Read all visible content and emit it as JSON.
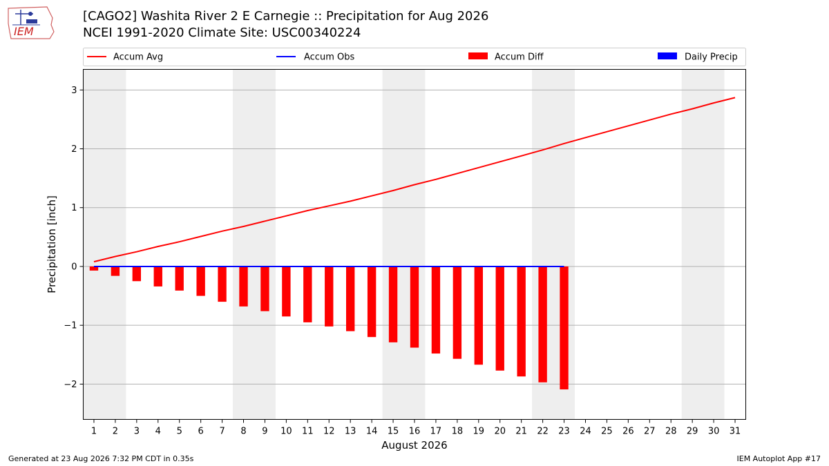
{
  "header": {
    "title_line1": "[CAGO2] Washita River 2 E Carnegie :: Precipitation for Aug 2026",
    "title_line2": "NCEI 1991-2020 Climate Site: USC00340224"
  },
  "logo": {
    "text": "IEM"
  },
  "footer": {
    "left": "Generated at 23 Aug 2026 7:32 PM CDT in 0.35s",
    "right": "IEM Autoplot App #17"
  },
  "chart_data": {
    "type": "bar",
    "xlabel": "August 2026",
    "ylabel": "Precipitation [inch]",
    "xlim": [
      0.5,
      31.5
    ],
    "ylim": [
      -2.6,
      3.35
    ],
    "yticks": [
      -2,
      -1,
      0,
      1,
      2,
      3
    ],
    "ytick_labels": [
      "−2",
      "−1",
      "0",
      "1",
      "2",
      "3"
    ],
    "xticks": [
      1,
      2,
      3,
      4,
      5,
      6,
      7,
      8,
      9,
      10,
      11,
      12,
      13,
      14,
      15,
      16,
      17,
      18,
      19,
      20,
      21,
      22,
      23,
      24,
      25,
      26,
      27,
      28,
      29,
      30,
      31
    ],
    "grid": true,
    "legend_position": "top",
    "weekend_shading": [
      [
        0.5,
        2.5
      ],
      [
        7.5,
        9.5
      ],
      [
        14.5,
        16.5
      ],
      [
        21.5,
        23.5
      ],
      [
        28.5,
        30.5
      ]
    ],
    "colors": {
      "accum_avg": "#ff0000",
      "accum_obs": "#0000ff",
      "accum_diff": "#ff0000",
      "daily_precip": "#0000ff",
      "shade": "#eeeeee",
      "grid": "#b0b0b0"
    },
    "legend": [
      "Accum Avg",
      "Accum Obs",
      "Accum Diff",
      "Daily Precip"
    ],
    "series": [
      {
        "name": "Accum Avg",
        "kind": "line",
        "x": [
          1,
          2,
          3,
          4,
          5,
          6,
          7,
          8,
          9,
          10,
          11,
          12,
          13,
          14,
          15,
          16,
          17,
          18,
          19,
          20,
          21,
          22,
          23,
          24,
          25,
          26,
          27,
          28,
          29,
          30,
          31
        ],
        "values": [
          0.08,
          0.17,
          0.25,
          0.34,
          0.42,
          0.51,
          0.6,
          0.68,
          0.77,
          0.86,
          0.95,
          1.03,
          1.11,
          1.2,
          1.29,
          1.39,
          1.48,
          1.58,
          1.68,
          1.78,
          1.88,
          1.98,
          2.09,
          2.19,
          2.29,
          2.39,
          2.49,
          2.59,
          2.68,
          2.78,
          2.87
        ]
      },
      {
        "name": "Accum Obs",
        "kind": "line",
        "x": [
          1,
          2,
          3,
          4,
          5,
          6,
          7,
          8,
          9,
          10,
          11,
          12,
          13,
          14,
          15,
          16,
          17,
          18,
          19,
          20,
          21,
          22,
          23
        ],
        "values": [
          0,
          0,
          0,
          0,
          0,
          0,
          0,
          0,
          0,
          0,
          0,
          0,
          0,
          0,
          0,
          0,
          0,
          0,
          0,
          0,
          0,
          0,
          0
        ]
      },
      {
        "name": "Accum Diff",
        "kind": "bar",
        "x": [
          1,
          2,
          3,
          4,
          5,
          6,
          7,
          8,
          9,
          10,
          11,
          12,
          13,
          14,
          15,
          16,
          17,
          18,
          19,
          20,
          21,
          22,
          23
        ],
        "values": [
          -0.07,
          -0.16,
          -0.25,
          -0.34,
          -0.41,
          -0.5,
          -0.6,
          -0.68,
          -0.76,
          -0.85,
          -0.95,
          -1.02,
          -1.1,
          -1.2,
          -1.29,
          -1.38,
          -1.48,
          -1.57,
          -1.67,
          -1.77,
          -1.87,
          -1.97,
          -2.09
        ]
      },
      {
        "name": "Daily Precip",
        "kind": "bar",
        "x": [
          1,
          2,
          3,
          4,
          5,
          6,
          7,
          8,
          9,
          10,
          11,
          12,
          13,
          14,
          15,
          16,
          17,
          18,
          19,
          20,
          21,
          22,
          23
        ],
        "values": [
          0,
          0,
          0,
          0,
          0,
          0,
          0,
          0,
          0,
          0,
          0,
          0,
          0,
          0,
          0,
          0,
          0,
          0,
          0,
          0,
          0,
          0,
          0
        ]
      }
    ]
  }
}
